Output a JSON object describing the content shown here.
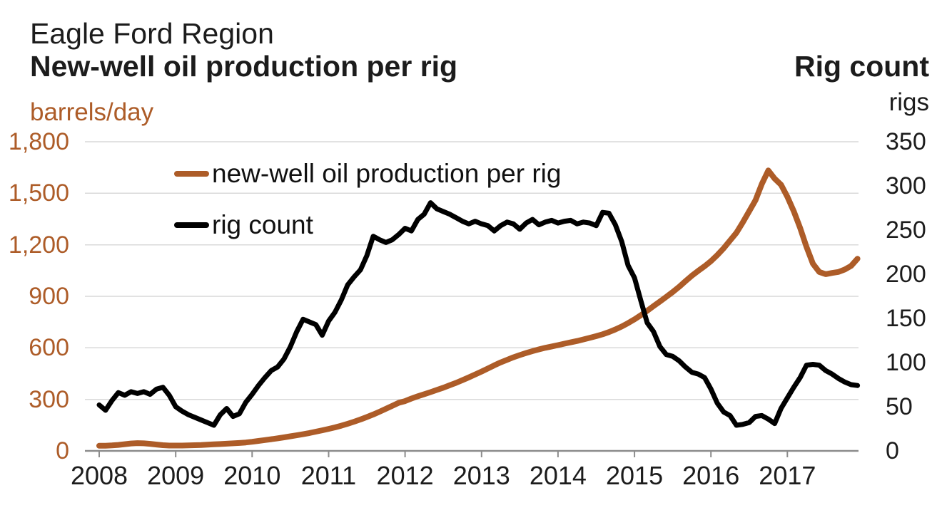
{
  "header": {
    "region_title": "Eagle Ford Region",
    "left_title": "New-well oil production per rig",
    "right_title": "Rig count",
    "left_unit": "barrels/day",
    "right_unit": "rigs"
  },
  "legend": [
    {
      "label": "new-well oil production per rig",
      "color": "#ad5c28"
    },
    {
      "label": "rig count",
      "color": "#000000"
    }
  ],
  "colors": {
    "production_line": "#ad5c28",
    "rig_count_line": "#000000",
    "gridline": "#d9d9d9",
    "axis_line": "#8c8c8c",
    "left_axis_text": "#ad5c28",
    "right_axis_text": "#1c1c1c"
  },
  "chart_data": {
    "type": "line",
    "title": "Eagle Ford Region — New-well oil production per rig and Rig count",
    "x_tick_labels": [
      "2008",
      "2009",
      "2010",
      "2011",
      "2012",
      "2013",
      "2014",
      "2015",
      "2016",
      "2017"
    ],
    "x_frequency": "monthly",
    "x_range": [
      "2008-01",
      "2017-12"
    ],
    "grid": true,
    "legend_position": "upper-left-inside",
    "left_axis": {
      "label": "barrels/day",
      "ticks": [
        "1,800",
        "1,500",
        "1,200",
        "900",
        "600",
        "300",
        "0"
      ],
      "values": [
        1800,
        1500,
        1200,
        900,
        600,
        300,
        0
      ],
      "range": [
        0,
        1800
      ]
    },
    "right_axis": {
      "label": "rigs",
      "ticks": [
        "350",
        "300",
        "250",
        "200",
        "150",
        "100",
        "50",
        "0"
      ],
      "values": [
        350,
        300,
        250,
        200,
        150,
        100,
        50,
        0
      ],
      "range": [
        0,
        350
      ]
    },
    "series": [
      {
        "id": "production",
        "name": "new-well oil production per rig",
        "axis": "left",
        "units": "barrels/day",
        "color": "#ad5c28",
        "width": 8,
        "values": [
          30,
          30,
          32,
          35,
          39,
          43,
          45,
          44,
          41,
          37,
          33,
          31,
          31,
          31,
          32,
          33,
          34,
          36,
          38,
          40,
          42,
          44,
          46,
          49,
          53,
          58,
          63,
          68,
          73,
          79,
          85,
          91,
          97,
          104,
          112,
          120,
          128,
          137,
          147,
          158,
          170,
          183,
          197,
          212,
          228,
          245,
          262,
          280,
          290,
          305,
          318,
          330,
          342,
          355,
          368,
          382,
          396,
          412,
          428,
          445,
          462,
          480,
          498,
          515,
          530,
          545,
          558,
          570,
          581,
          591,
          600,
          608,
          616,
          624,
          632,
          640,
          649,
          658,
          668,
          679,
          692,
          707,
          724,
          744,
          766,
          790,
          816,
          843,
          870,
          897,
          925,
          955,
          988,
          1020,
          1048,
          1075,
          1105,
          1140,
          1180,
          1225,
          1270,
          1330,
          1395,
          1460,
          1555,
          1633,
          1585,
          1550,
          1480,
          1395,
          1298,
          1188,
          1090,
          1042,
          1029,
          1036,
          1042,
          1056,
          1077,
          1119
        ]
      },
      {
        "id": "rig-count",
        "name": "rig count",
        "axis": "right",
        "units": "rigs",
        "color": "#000000",
        "width": 7,
        "values": [
          52,
          46,
          57,
          66,
          63,
          67,
          65,
          67,
          64,
          70,
          72,
          63,
          50,
          45,
          41,
          38,
          35,
          32,
          29,
          41,
          48,
          39,
          42,
          55,
          64,
          74,
          83,
          91,
          95,
          104,
          118,
          135,
          149,
          146,
          143,
          131,
          147,
          157,
          171,
          188,
          197,
          205,
          221,
          243,
          239,
          236,
          239,
          245,
          252,
          249,
          262,
          268,
          281,
          274,
          271,
          268,
          264,
          260,
          257,
          260,
          257,
          255,
          249,
          255,
          259,
          257,
          251,
          258,
          262,
          256,
          259,
          261,
          258,
          260,
          261,
          257,
          259,
          258,
          255,
          270,
          269,
          256,
          237,
          210,
          196,
          170,
          145,
          135,
          118,
          109,
          107,
          102,
          95,
          89,
          87,
          83,
          70,
          54,
          44,
          40,
          29,
          30,
          32,
          39,
          40,
          36,
          31,
          48,
          60,
          72,
          83,
          97,
          98,
          97,
          91,
          87,
          82,
          78,
          75,
          74
        ]
      }
    ]
  }
}
